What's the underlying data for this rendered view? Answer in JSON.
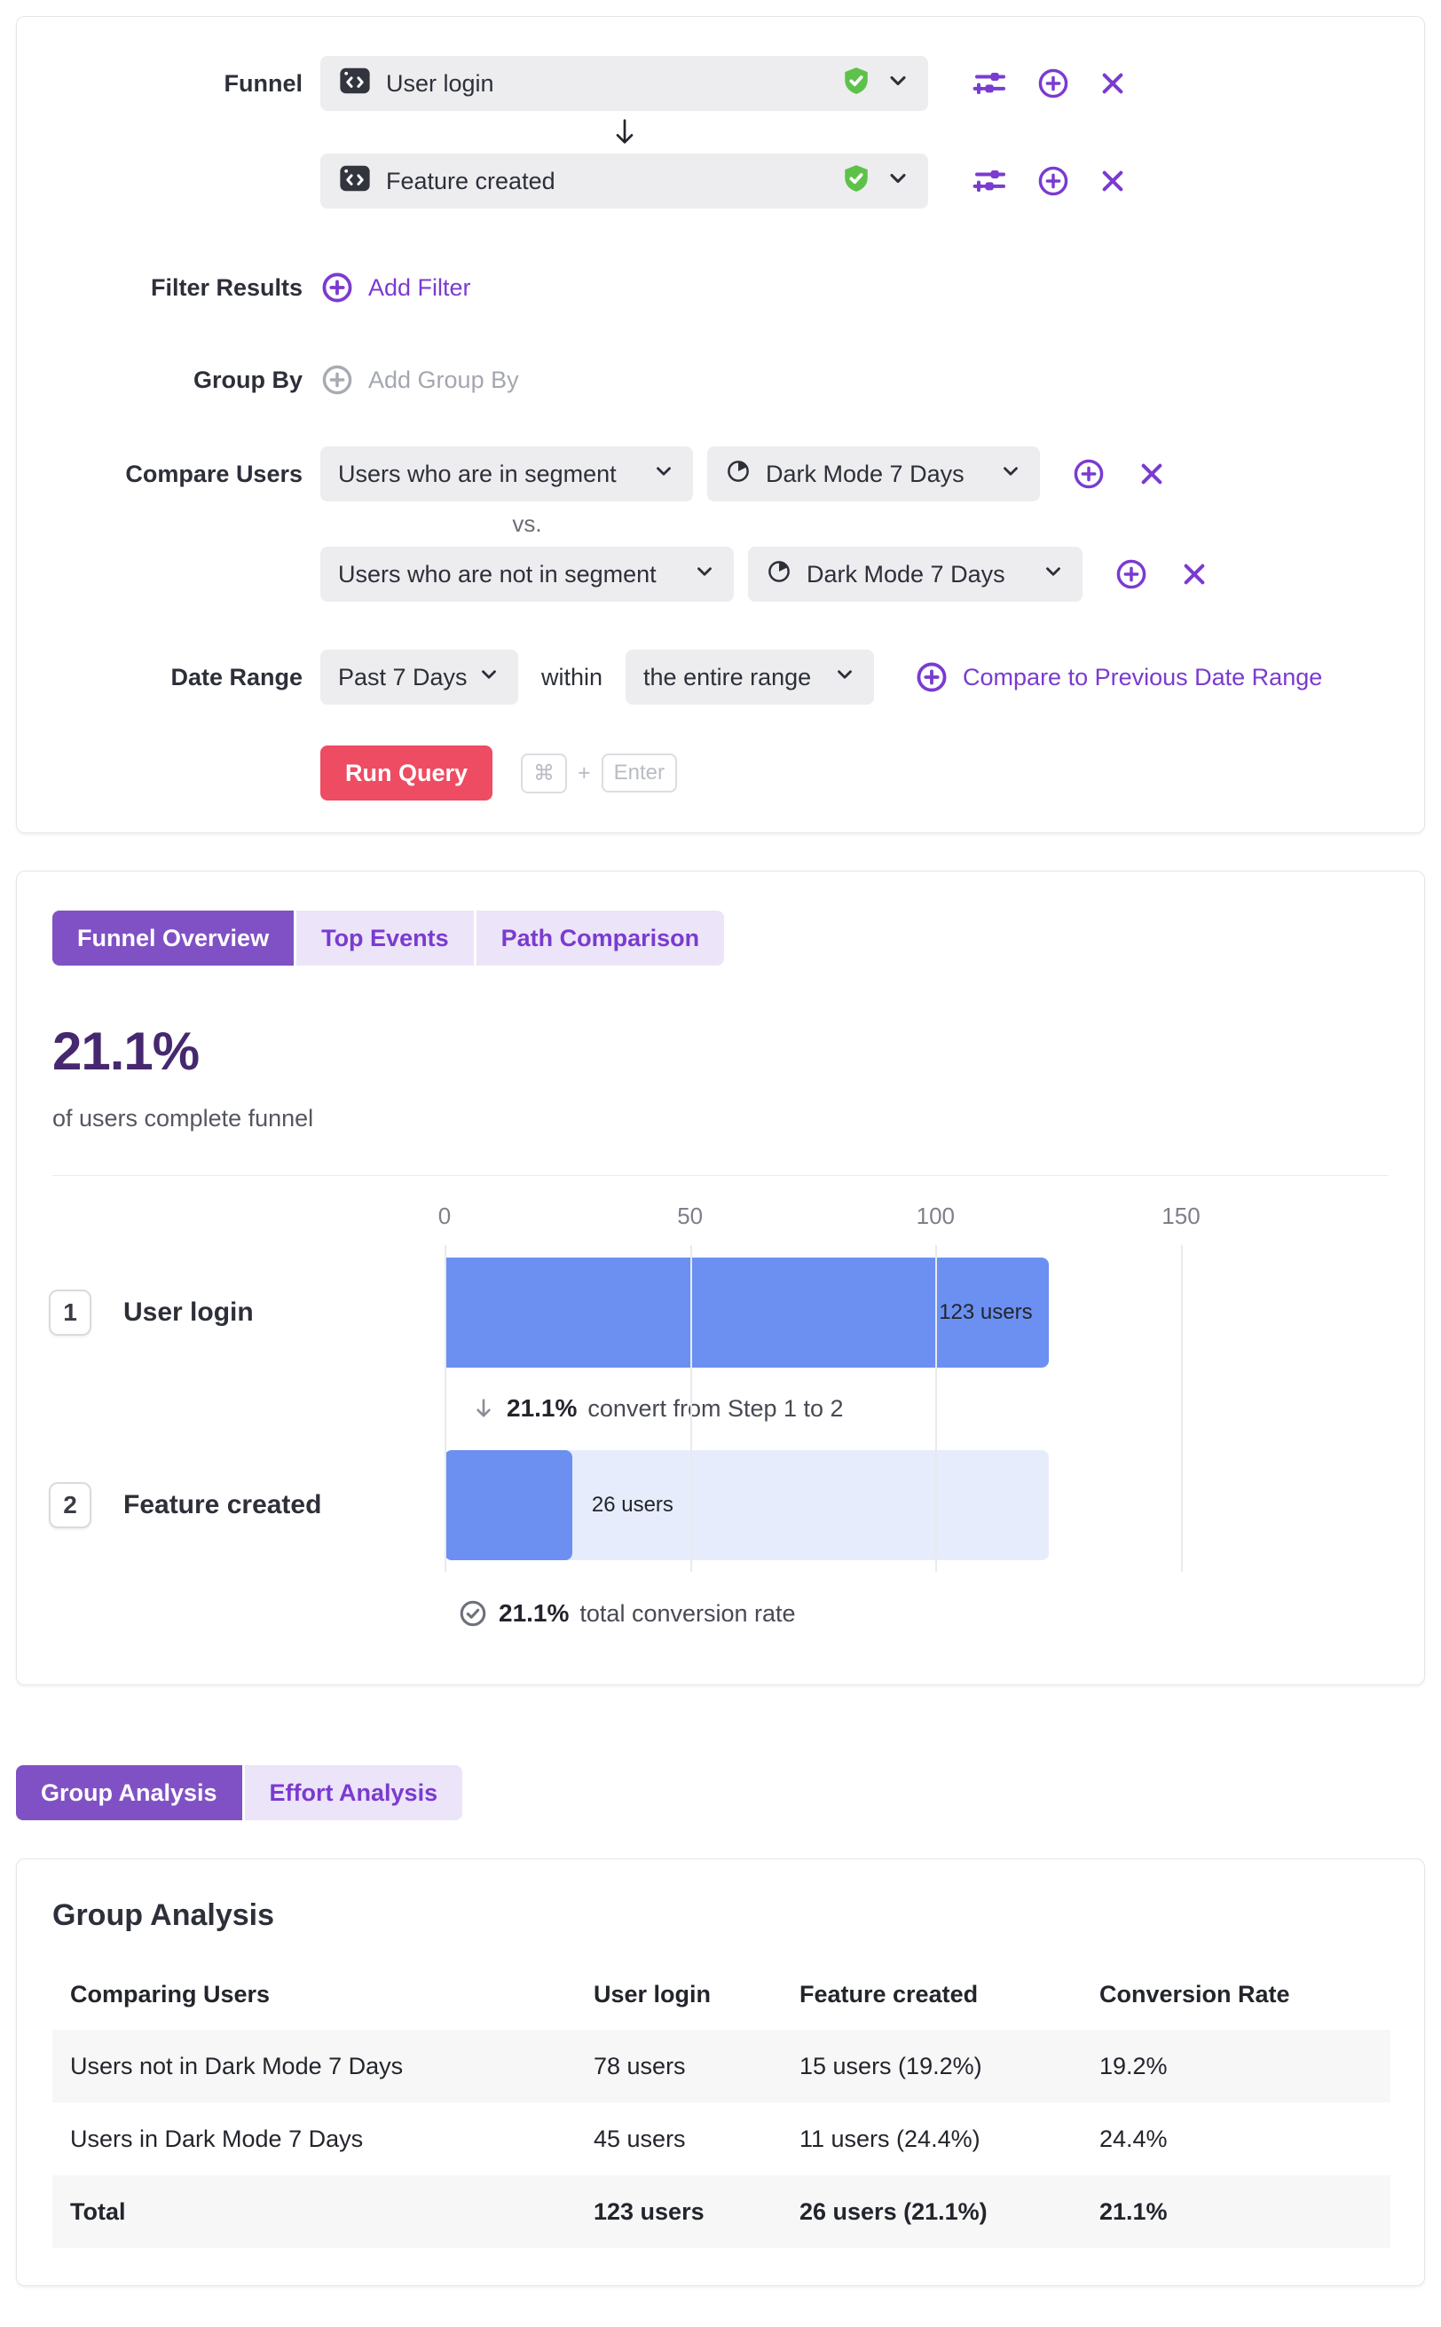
{
  "colors": {
    "accent": "#7a3bd0",
    "accent-dark": "#46286f",
    "tab-active": "#8051c4",
    "tab-inactive": "#ece4f8",
    "bar-blue": "#6b90f1",
    "bar-track": "#e7ecfc",
    "green": "#5ec24a",
    "red": "#ee4c62",
    "text-dark": "#2d2f39",
    "text-gray": "#54575f",
    "border": "#e4e5ea",
    "control-bg": "#ededef",
    "zebra": "#f7f7f8",
    "grid": "#e9eaee"
  },
  "query_builder": {
    "funnel_label": "Funnel",
    "steps": [
      {
        "event": "User login"
      },
      {
        "event": "Feature created"
      }
    ],
    "filter_results": {
      "label": "Filter Results",
      "add_label": "Add Filter"
    },
    "group_by": {
      "label": "Group By",
      "add_label": "Add Group By"
    },
    "compare_users": {
      "label": "Compare Users",
      "vs_label": "vs.",
      "rows": [
        {
          "mode": "Users who are in segment",
          "segment": "Dark Mode 7 Days"
        },
        {
          "mode": "Users who are not in segment",
          "segment": "Dark Mode 7 Days"
        }
      ]
    },
    "date_range": {
      "label": "Date Range",
      "range_value": "Past 7 Days",
      "within_label": "within",
      "scope_value": "the entire range",
      "compare_link": "Compare to Previous Date Range"
    },
    "run": {
      "button_label": "Run Query",
      "kbd_cmd": "⌘",
      "kbd_plus": "+",
      "kbd_enter": "Enter"
    }
  },
  "results_panel": {
    "tabs": [
      {
        "label": "Funnel Overview",
        "active": true
      },
      {
        "label": "Top Events",
        "active": false
      },
      {
        "label": "Path Comparison",
        "active": false
      }
    ],
    "headline_value": "21.1%",
    "headline_caption": "of users complete funnel",
    "steps": [
      {
        "number": "1",
        "label": "User login"
      },
      {
        "number": "2",
        "label": "Feature created"
      }
    ],
    "step_conversion": {
      "value": "21.1%",
      "text": "convert from Step 1 to 2"
    },
    "total_conversion": {
      "value": "21.1%",
      "text": "total conversion rate"
    }
  },
  "analysis_tabs": [
    {
      "label": "Group Analysis",
      "active": true
    },
    {
      "label": "Effort Analysis",
      "active": false
    }
  ],
  "group_analysis": {
    "title": "Group Analysis",
    "columns": [
      "Comparing Users",
      "User login",
      "Feature created",
      "Conversion Rate"
    ],
    "rows": [
      {
        "cells": [
          "Users not in Dark Mode 7 Days",
          "78 users",
          "15 users (19.2%)",
          "19.2%"
        ],
        "bold": false
      },
      {
        "cells": [
          "Users in Dark Mode 7 Days",
          "45 users",
          "11 users (24.4%)",
          "24.4%"
        ],
        "bold": false
      },
      {
        "cells": [
          "Total",
          "123 users",
          "26 users (21.1%)",
          "21.1%"
        ],
        "bold": true
      }
    ]
  },
  "chart_data": {
    "type": "bar",
    "orientation": "horizontal",
    "title": "Funnel Overview",
    "categories": [
      "User login",
      "Feature created"
    ],
    "values": [
      123,
      26
    ],
    "value_labels": [
      "123 users",
      "26 users"
    ],
    "x_ticks": [
      0,
      50,
      100,
      150
    ],
    "xlim": [
      0,
      150
    ],
    "grid": true,
    "annotations": [
      "21.1% convert from Step 1 to 2",
      "21.1% total conversion rate"
    ],
    "bar_color": "#6b90f1",
    "track_color": "#e7ecfc"
  }
}
